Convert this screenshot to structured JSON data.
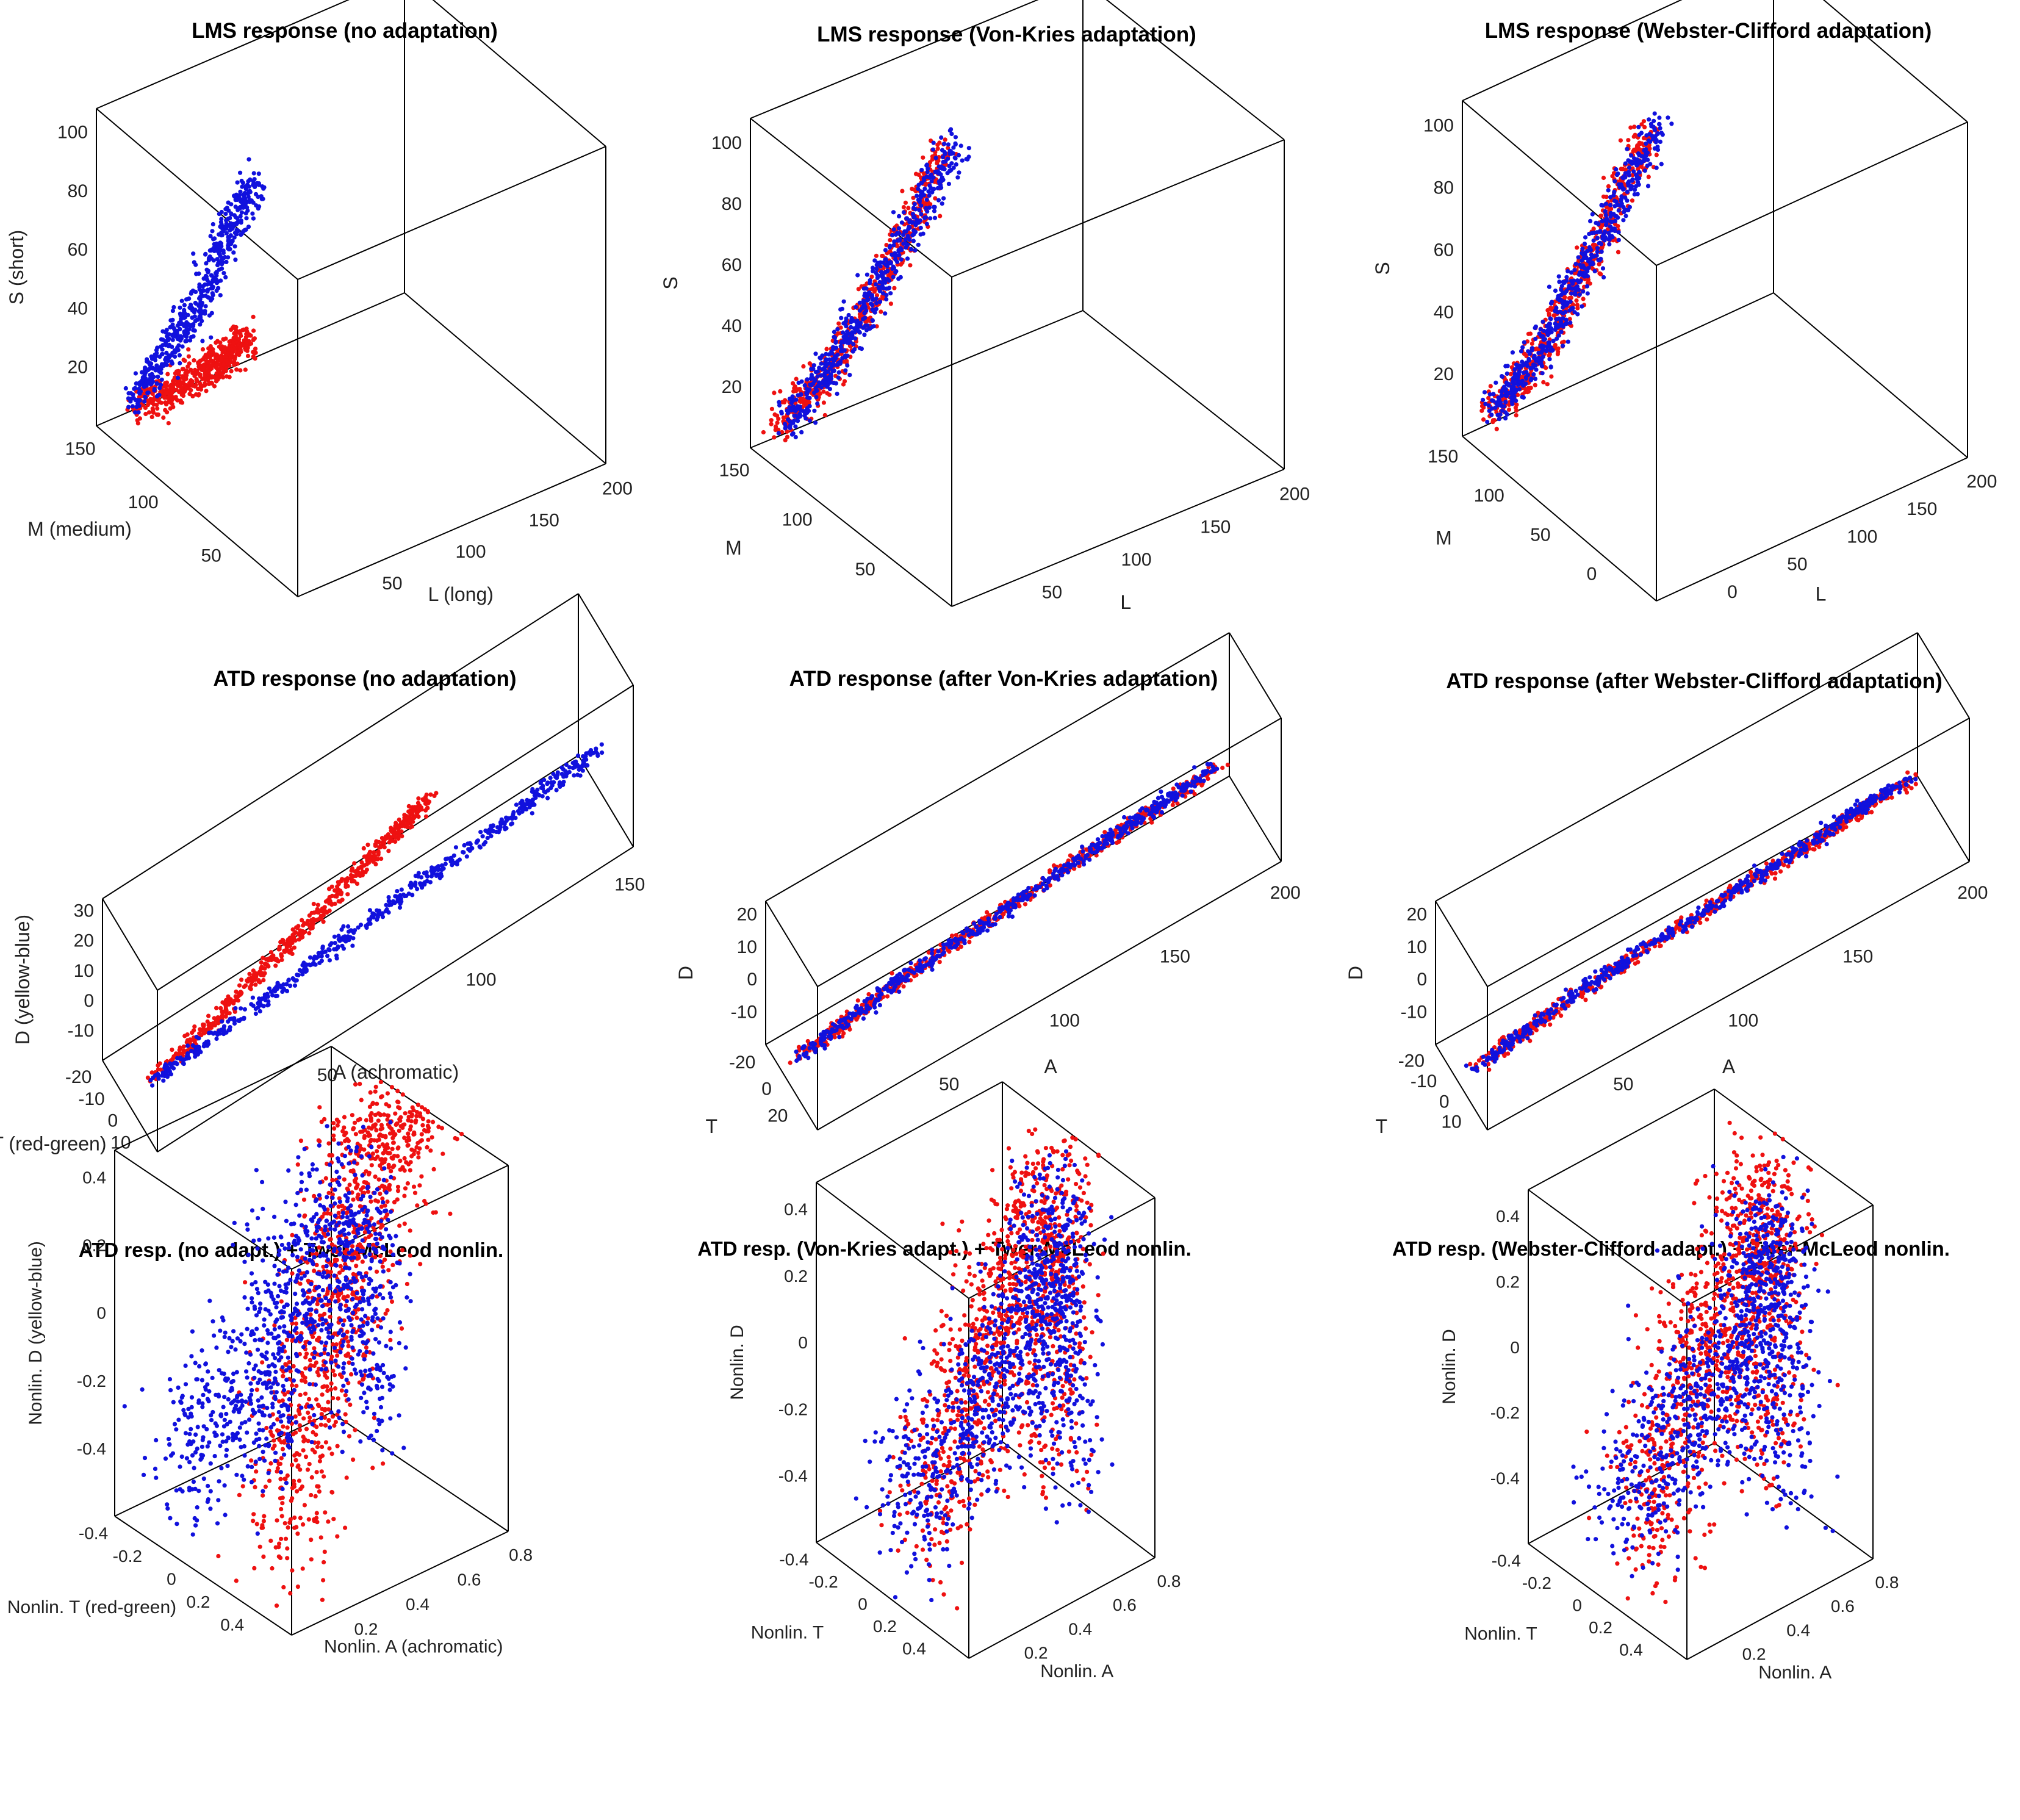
{
  "figure": {
    "colors": {
      "series_red": "#ee1111",
      "series_blue": "#1111dd",
      "box": "#000000",
      "text": "#222222"
    }
  },
  "chart_data": [
    {
      "type": "scatter",
      "title": "LMS response (no adaptation)",
      "axes": {
        "x": {
          "label": "L (long)",
          "ticks": [
            "50",
            "100",
            "150",
            "200"
          ],
          "range": [
            0,
            200
          ]
        },
        "y": {
          "label": "M (medium)",
          "ticks": [
            "50",
            "100",
            "150"
          ],
          "range": [
            0,
            180
          ]
        },
        "z": {
          "label": "S (short)",
          "ticks": [
            "20",
            "40",
            "60",
            "80",
            "100"
          ],
          "range": [
            0,
            120
          ]
        }
      },
      "grid": false,
      "series": [
        {
          "color": "red",
          "cluster": "elongated",
          "points": [
            [
              20,
              10,
              5
            ],
            [
              35,
              20,
              12
            ],
            [
              50,
              28,
              18
            ],
            [
              60,
              35,
              25
            ],
            [
              70,
              40,
              30
            ]
          ]
        },
        {
          "color": "blue",
          "cluster": "elongated",
          "points": [
            [
              10,
              18,
              12
            ],
            [
              20,
              40,
              40
            ],
            [
              28,
              55,
              60
            ],
            [
              35,
              70,
              90
            ],
            [
              45,
              80,
              110
            ]
          ]
        }
      ]
    },
    {
      "type": "scatter",
      "title": "LMS response (Von-Kries adaptation)",
      "axes": {
        "x": {
          "label": "L",
          "ticks": [
            "50",
            "100",
            "150",
            "200"
          ],
          "range": [
            0,
            200
          ]
        },
        "y": {
          "label": "M",
          "ticks": [
            "50",
            "100",
            "150"
          ],
          "range": [
            0,
            180
          ]
        },
        "z": {
          "label": "S",
          "ticks": [
            "20",
            "40",
            "60",
            "80",
            "100"
          ],
          "range": [
            0,
            120
          ]
        }
      },
      "grid": false,
      "series": [
        {
          "color": "red",
          "cluster": "elongated",
          "points": [
            [
              10,
              10,
              8
            ],
            [
              25,
              25,
              25
            ],
            [
              40,
              40,
              50
            ],
            [
              55,
              55,
              80
            ],
            [
              70,
              70,
              115
            ]
          ]
        },
        {
          "color": "blue",
          "cluster": "elongated",
          "points": [
            [
              12,
              12,
              10
            ],
            [
              28,
              28,
              30
            ],
            [
              42,
              42,
              55
            ],
            [
              58,
              58,
              85
            ],
            [
              75,
              75,
              118
            ]
          ]
        }
      ]
    },
    {
      "type": "scatter",
      "title": "LMS response (Webster-Clifford adaptation)",
      "axes": {
        "x": {
          "label": "L",
          "ticks": [
            "0",
            "50",
            "100",
            "150",
            "200"
          ],
          "range": [
            0,
            200
          ]
        },
        "y": {
          "label": "M",
          "ticks": [
            "0",
            "50",
            "100",
            "150"
          ],
          "range": [
            0,
            180
          ]
        },
        "z": {
          "label": "S",
          "ticks": [
            "20",
            "40",
            "60",
            "80",
            "100"
          ],
          "range": [
            0,
            120
          ]
        }
      },
      "grid": false,
      "series": [
        {
          "color": "red",
          "cluster": "elongated",
          "points": [
            [
              10,
              10,
              8
            ],
            [
              25,
              25,
              25
            ],
            [
              40,
              40,
              50
            ],
            [
              55,
              55,
              80
            ],
            [
              70,
              70,
              115
            ]
          ]
        },
        {
          "color": "blue",
          "cluster": "elongated",
          "points": [
            [
              12,
              12,
              10
            ],
            [
              28,
              28,
              30
            ],
            [
              42,
              42,
              55
            ],
            [
              58,
              58,
              85
            ],
            [
              75,
              75,
              118
            ]
          ]
        }
      ]
    },
    {
      "type": "scatter",
      "title": "ATD response (no adaptation)",
      "axes": {
        "x": {
          "label": "A (achromatic)",
          "ticks": [
            "50",
            "100",
            "150"
          ],
          "range": [
            0,
            200
          ]
        },
        "y": {
          "label": "T (red-green)",
          "ticks": [
            "10",
            "0",
            "-10",
            "-20"
          ],
          "range": [
            -20,
            15
          ]
        },
        "z": {
          "label": "D (yellow-blue)",
          "ticks": [
            "-10",
            "0",
            "10",
            "20",
            "30"
          ],
          "range": [
            -12,
            38
          ]
        }
      },
      "grid": false,
      "series": [
        {
          "color": "red",
          "cluster": "elongated",
          "points": [
            [
              10,
              0,
              -5
            ],
            [
              40,
              2,
              5
            ],
            [
              70,
              3,
              15
            ],
            [
              100,
              4,
              25
            ],
            [
              120,
              5,
              33
            ]
          ]
        },
        {
          "color": "blue",
          "cluster": "elongated",
          "points": [
            [
              10,
              -2,
              -8
            ],
            [
              60,
              -3,
              -6
            ],
            [
              110,
              -4,
              -3
            ],
            [
              160,
              -5,
              -1
            ],
            [
              200,
              -6,
              2
            ]
          ]
        }
      ]
    },
    {
      "type": "scatter",
      "title": "ATD response (after Von-Kries adaptation)",
      "axes": {
        "x": {
          "label": "A",
          "ticks": [
            "50",
            "100",
            "150",
            "200"
          ],
          "range": [
            0,
            210
          ]
        },
        "y": {
          "label": "T",
          "ticks": [
            "20",
            "0",
            "-20"
          ],
          "range": [
            -25,
            25
          ]
        },
        "z": {
          "label": "D",
          "ticks": [
            "-10",
            "0",
            "10",
            "20"
          ],
          "range": [
            -12,
            25
          ]
        }
      },
      "grid": false,
      "series": [
        {
          "color": "red",
          "cluster": "elongated",
          "points": [
            [
              5,
              0,
              -5
            ],
            [
              50,
              1,
              0
            ],
            [
              100,
              1,
              3
            ],
            [
              150,
              2,
              6
            ],
            [
              190,
              2,
              8
            ]
          ]
        },
        {
          "color": "blue",
          "cluster": "elongated",
          "points": [
            [
              5,
              -1,
              -6
            ],
            [
              50,
              -1,
              -1
            ],
            [
              100,
              0,
              2
            ],
            [
              150,
              0,
              5
            ],
            [
              190,
              1,
              8
            ]
          ]
        }
      ]
    },
    {
      "type": "scatter",
      "title": "ATD response (after Webster-Clifford adaptation)",
      "axes": {
        "x": {
          "label": "A",
          "ticks": [
            "50",
            "100",
            "150",
            "200"
          ],
          "range": [
            0,
            210
          ]
        },
        "y": {
          "label": "T",
          "ticks": [
            "10",
            "0",
            "-10",
            "-20"
          ],
          "range": [
            -25,
            15
          ]
        },
        "z": {
          "label": "D",
          "ticks": [
            "-10",
            "0",
            "10",
            "20"
          ],
          "range": [
            -12,
            25
          ]
        }
      },
      "grid": false,
      "series": [
        {
          "color": "red",
          "cluster": "elongated",
          "points": [
            [
              5,
              0,
              -5
            ],
            [
              50,
              1,
              0
            ],
            [
              100,
              1,
              3
            ],
            [
              150,
              2,
              6
            ],
            [
              190,
              2,
              8
            ]
          ]
        },
        {
          "color": "blue",
          "cluster": "elongated",
          "points": [
            [
              5,
              -1,
              -6
            ],
            [
              50,
              -1,
              -1
            ],
            [
              100,
              0,
              2
            ],
            [
              150,
              0,
              5
            ],
            [
              190,
              1,
              8
            ]
          ]
        }
      ]
    },
    {
      "type": "scatter",
      "title": "ATD resp. (no adapt.) + Twer-McLeod nonlin.",
      "axes": {
        "x": {
          "label": "Nonlin. A (achromatic)",
          "ticks": [
            "0.2",
            "0.4",
            "0.6",
            "0.8"
          ],
          "range": [
            0,
            0.9
          ]
        },
        "y": {
          "label": "Nonlin. T (red-green)",
          "ticks": [
            "0.4",
            "0.2",
            "0",
            "-0.2",
            "-0.4"
          ],
          "range": [
            -0.5,
            0.5
          ]
        },
        "z": {
          "label": "Nonlin. D (yellow-blue)",
          "ticks": [
            "-0.4",
            "-0.2",
            "0",
            "0.2",
            "0.4"
          ],
          "range": [
            -0.5,
            0.5
          ]
        }
      },
      "grid": false,
      "series": [
        {
          "color": "red",
          "cluster": "diffuse",
          "points": [
            [
              0.1,
              0.3,
              -0.3
            ],
            [
              0.3,
              0.2,
              0
            ],
            [
              0.5,
              0.1,
              0.2
            ],
            [
              0.7,
              0,
              0.4
            ],
            [
              0.85,
              0,
              0.5
            ]
          ]
        },
        {
          "color": "blue",
          "cluster": "diffuse",
          "points": [
            [
              0.1,
              -0.3,
              -0.3
            ],
            [
              0.4,
              -0.2,
              -0.2
            ],
            [
              0.6,
              -0.3,
              0
            ],
            [
              0.8,
              -0.2,
              0.2
            ],
            [
              0.9,
              -0.3,
              -0.4
            ]
          ]
        }
      ]
    },
    {
      "type": "scatter",
      "title": "ATD resp. (Von-Kries adapt.) + Twer-McLeod nonlin.",
      "axes": {
        "x": {
          "label": "Nonlin. A",
          "ticks": [
            "0.2",
            "0.4",
            "0.6",
            "0.8"
          ],
          "range": [
            0,
            0.9
          ]
        },
        "y": {
          "label": "Nonlin. T",
          "ticks": [
            "0.4",
            "0.2",
            "0",
            "-0.2",
            "-0.4"
          ],
          "range": [
            -0.5,
            0.5
          ]
        },
        "z": {
          "label": "Nonlin. D",
          "ticks": [
            "-0.4",
            "-0.2",
            "0",
            "0.2",
            "0.4"
          ],
          "range": [
            -0.5,
            0.5
          ]
        }
      },
      "grid": false,
      "series": [
        {
          "color": "red",
          "cluster": "mixed",
          "points": [
            [
              0.1,
              0.1,
              -0.3
            ],
            [
              0.4,
              0,
              0
            ],
            [
              0.6,
              0,
              0.2
            ],
            [
              0.8,
              0,
              0.4
            ],
            [
              0.85,
              -0.1,
              -0.4
            ]
          ]
        },
        {
          "color": "blue",
          "cluster": "mixed",
          "points": [
            [
              0.1,
              -0.1,
              -0.3
            ],
            [
              0.4,
              0,
              -0.1
            ],
            [
              0.6,
              0.1,
              0.1
            ],
            [
              0.8,
              0,
              0.3
            ],
            [
              0.85,
              0,
              -0.4
            ]
          ]
        }
      ]
    },
    {
      "type": "scatter",
      "title": "ATD resp. (Webster-Clifford adapt.) + Twer-McLeod nonlin.",
      "axes": {
        "x": {
          "label": "Nonlin. A",
          "ticks": [
            "0.2",
            "0.4",
            "0.6",
            "0.8"
          ],
          "range": [
            0,
            0.9
          ]
        },
        "y": {
          "label": "Nonlin. T",
          "ticks": [
            "0.4",
            "0.2",
            "0",
            "-0.2",
            "-0.4"
          ],
          "range": [
            -0.5,
            0.5
          ]
        },
        "z": {
          "label": "Nonlin. D",
          "ticks": [
            "-0.4",
            "-0.2",
            "0",
            "0.2",
            "0.4"
          ],
          "range": [
            -0.5,
            0.5
          ]
        }
      },
      "grid": false,
      "series": [
        {
          "color": "red",
          "cluster": "mixed",
          "points": [
            [
              0.1,
              0.1,
              -0.3
            ],
            [
              0.4,
              0,
              0
            ],
            [
              0.6,
              0,
              0.2
            ],
            [
              0.8,
              0,
              0.4
            ],
            [
              0.85,
              -0.1,
              -0.4
            ]
          ]
        },
        {
          "color": "blue",
          "cluster": "mixed",
          "points": [
            [
              0.1,
              -0.1,
              -0.3
            ],
            [
              0.4,
              0,
              -0.1
            ],
            [
              0.6,
              0.1,
              0.1
            ],
            [
              0.8,
              0,
              0.3
            ],
            [
              0.85,
              0,
              -0.4
            ]
          ]
        }
      ]
    }
  ]
}
